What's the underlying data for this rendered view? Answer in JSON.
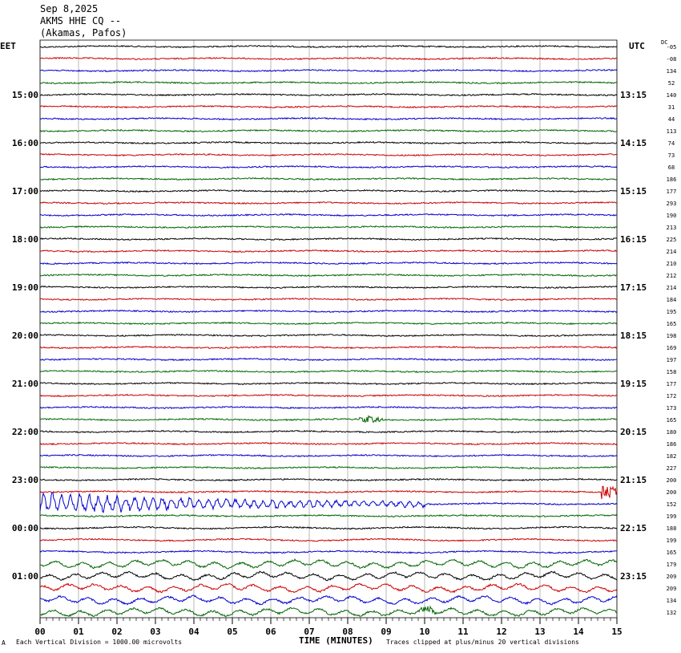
{
  "header": {
    "date": "Sep 8,2025",
    "station": "AKMS HHE CQ --",
    "location": "(Akamas, Pafos)"
  },
  "left_label": "EET",
  "right_label": "UTC",
  "dc_label": "DC",
  "footer": {
    "scale_note": "Each Vertical Division = 1000.00 microvolts",
    "x_title": "TIME (MINUTES)",
    "clip_note": "Traces clipped at plus/minus 20 vertical divisions",
    "corner_mark": "A"
  },
  "colors": {
    "black": "#000000",
    "red": "#cc0000",
    "blue": "#0000cc",
    "green": "#006600",
    "grid": "#888888"
  },
  "chart_data": {
    "type": "line",
    "title": "AKMS HHE CQ --",
    "xlabel": "TIME (MINUTES)",
    "xlim": [
      0,
      15
    ],
    "x_ticks": [
      "00",
      "01",
      "02",
      "03",
      "04",
      "05",
      "06",
      "07",
      "08",
      "09",
      "10",
      "11",
      "12",
      "13",
      "14",
      "15"
    ],
    "left_hour_labels": [
      "15:00",
      "16:00",
      "17:00",
      "18:00",
      "19:00",
      "20:00",
      "21:00",
      "22:00",
      "23:00",
      "00:00",
      "01:00"
    ],
    "right_hour_labels": [
      "13:15",
      "14:15",
      "15:15",
      "16:15",
      "17:15",
      "18:15",
      "19:15",
      "20:15",
      "21:15",
      "22:15",
      "23:15"
    ],
    "dc_offsets": [
      "-05",
      "-08",
      "134",
      "52",
      "140",
      "31",
      "44",
      "113",
      "74",
      "73",
      "68",
      "186",
      "177",
      "293",
      "190",
      "213",
      "225",
      "214",
      "210",
      "212",
      "214",
      "184",
      "195",
      "165",
      "198",
      "169",
      "197",
      "158",
      "177",
      "172",
      "173",
      "165",
      "180",
      "186",
      "182",
      "227",
      "200",
      "200",
      "152",
      "199",
      "188",
      "199",
      "165",
      "179",
      "209",
      "209",
      "134",
      "132"
    ],
    "trace_colors": [
      "black",
      "red",
      "blue",
      "green"
    ],
    "events": [
      {
        "trace": 31,
        "start_min": 8.2,
        "end_min": 9.0,
        "amplitude": "small"
      },
      {
        "trace": 38,
        "start_min": 0.0,
        "end_min": 10.0,
        "amplitude": "large"
      },
      {
        "trace": 37,
        "start_min": 14.6,
        "end_min": 15.0,
        "amplitude": "clipped"
      },
      {
        "trace": 47,
        "start_min": 9.7,
        "end_min": 10.4,
        "amplitude": "small"
      }
    ],
    "scale_microvolts_per_division": 1000.0,
    "clip_divisions": 20
  }
}
